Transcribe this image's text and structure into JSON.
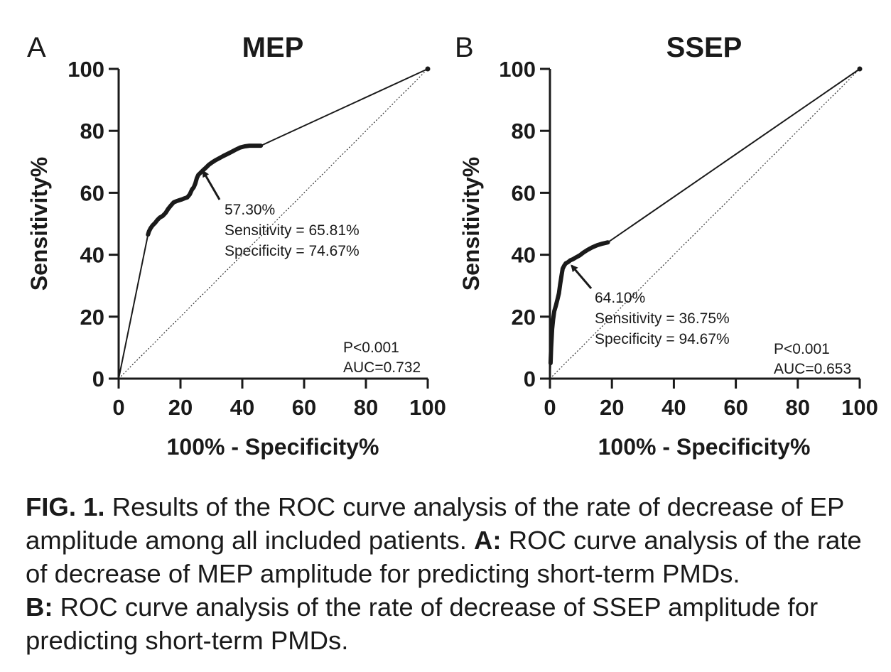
{
  "chart_data": [
    {
      "type": "line",
      "panel": "A",
      "title": "MEP",
      "xlabel": "100% - Specificity%",
      "ylabel": "Sensitivity%",
      "xlim": [
        0,
        100
      ],
      "ylim": [
        0,
        100
      ],
      "xticks": [
        "0",
        "20",
        "40",
        "60",
        "80",
        "100"
      ],
      "yticks": [
        "0",
        "20",
        "40",
        "60",
        "80",
        "100"
      ],
      "series": [
        {
          "x": [
            0,
            9.5,
            9.8,
            10.3,
            11,
            11.8,
            12.5,
            13.3,
            14.2,
            15.2,
            16,
            16.8,
            17.8,
            18.7,
            19.6,
            20.5,
            21.3,
            22.2,
            23,
            23.7,
            24.3,
            24.8,
            25.3,
            25.8,
            26.5,
            27.3,
            28.2,
            29.1,
            30.2,
            31.3,
            32.6,
            33.9,
            35.3,
            36.7,
            38,
            39.3,
            40.8,
            42.3,
            44,
            46,
            100
          ],
          "y": [
            0,
            46.5,
            47.5,
            48.5,
            49.5,
            50.3,
            51.2,
            52,
            52.5,
            53.5,
            54.8,
            55.8,
            56.9,
            57.3,
            57.6,
            57.9,
            58.2,
            58.5,
            59.5,
            61,
            61.8,
            63,
            64.8,
            65.8,
            66.5,
            67.3,
            68.1,
            69,
            69.8,
            70.5,
            71.2,
            71.9,
            72.6,
            73.3,
            74,
            74.6,
            75,
            75.2,
            75.2,
            75.2,
            100
          ]
        },
        {
          "x": [
            0,
            100
          ],
          "y": [
            0,
            100
          ]
        }
      ],
      "annotations": [
        {
          "arrow_to": [
            27.3,
            67
          ],
          "lines": [
            "57.30%",
            "Sensitivity = 65.81%",
            "Specificity = 74.67%"
          ]
        },
        {
          "lines": [
            "P<0.001",
            "AUC=0.732"
          ]
        }
      ]
    },
    {
      "type": "line",
      "panel": "B",
      "title": "SSEP",
      "xlabel": "100% - Specificity%",
      "ylabel": "Sensitivity%",
      "xlim": [
        0,
        100
      ],
      "ylim": [
        0,
        100
      ],
      "xticks": [
        "0",
        "20",
        "40",
        "60",
        "80",
        "100"
      ],
      "yticks": [
        "0",
        "20",
        "40",
        "60",
        "80",
        "100"
      ],
      "series": [
        {
          "x": [
            0,
            0.2,
            0.4,
            0.7,
            1,
            1.4,
            1.9,
            2.4,
            2.9,
            3.3,
            3.7,
            4.1,
            4.6,
            5.1,
            5.8,
            6.6,
            7.5,
            8.5,
            9.6,
            10.8,
            12.2,
            13.7,
            15.3,
            17,
            18.7,
            100
          ],
          "y": [
            0,
            5,
            10,
            16,
            19,
            21.8,
            23.5,
            25.5,
            27.5,
            30.5,
            33,
            35.5,
            36.5,
            37.2,
            37.6,
            38.2,
            38.6,
            39.2,
            39.8,
            40.7,
            41.6,
            42.4,
            43.1,
            43.6,
            44,
            100
          ]
        },
        {
          "x": [
            0,
            100
          ],
          "y": [
            0,
            100
          ]
        }
      ],
      "annotations": [
        {
          "arrow_to": [
            7,
            36.5
          ],
          "lines": [
            "64.10%",
            "Sensitivity = 36.75%",
            "Specificity = 94.67%"
          ]
        },
        {
          "lines": [
            "P<0.001",
            "AUC=0.653"
          ]
        }
      ]
    }
  ],
  "caption": {
    "fig_label": "FIG. 1.",
    "fig_text": " Results of the ROC curve analysis of the rate of decrease of EP amplitude among all included patients. ",
    "a_label": "A:",
    "a_text": " ROC curve analysis of the rate of decrease of MEP amplitude for predicting short-term PMDs.",
    "b_label": "B:",
    "b_text": " ROC curve analysis of the rate of decrease of SSEP amplitude for predicting short-term PMDs."
  }
}
